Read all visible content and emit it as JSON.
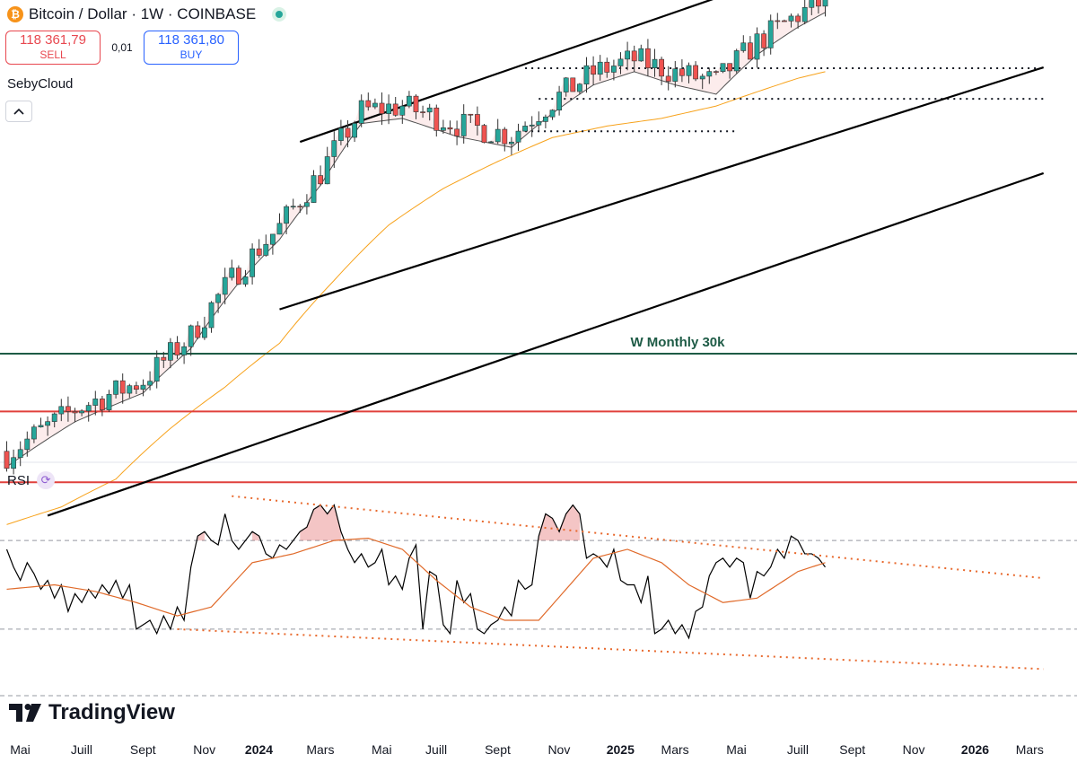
{
  "header": {
    "title": "Bitcoin / Dollar · 1W · COINBASE",
    "coin_icon": "bitcoin-icon",
    "live_icon": "market-open-dot"
  },
  "trade": {
    "sell_price": "118 361,79",
    "sell_label": "SELL",
    "spread": "0,01",
    "buy_price": "118 361,80",
    "buy_label": "BUY"
  },
  "author": "SebyCloud",
  "collapse_icon": "chevron-up-icon",
  "indicator": {
    "label": "RSI",
    "icon": "sync-icon"
  },
  "branding": "TradingView",
  "colors": {
    "up": "#26a69a",
    "down": "#ef5350",
    "ema_fast": "#505050",
    "ema_slow": "#f7a21b",
    "horizontal_green": "#1e5b46",
    "horizontal_red": "#e0403c",
    "rsi_line": "#000000",
    "rsi_ma": "#e06a2a",
    "rsi_trend": "#e8692d",
    "sell": "#e8474f",
    "buy": "#2962ff"
  },
  "chart_data": {
    "type": "candlestick",
    "title": "Bitcoin / Dollar · 1W · COINBASE",
    "x_axis": {
      "tick_labels": [
        {
          "label": "Mai",
          "t": 0,
          "bold": false
        },
        {
          "label": "Juill",
          "t": 9,
          "bold": false
        },
        {
          "label": "Sept",
          "t": 18,
          "bold": false
        },
        {
          "label": "Nov",
          "t": 27,
          "bold": false
        },
        {
          "label": "2024",
          "t": 35,
          "bold": true
        },
        {
          "label": "Mars",
          "t": 44,
          "bold": false
        },
        {
          "label": "Mai",
          "t": 53,
          "bold": false
        },
        {
          "label": "Juill",
          "t": 61,
          "bold": false
        },
        {
          "label": "Sept",
          "t": 70,
          "bold": false
        },
        {
          "label": "Nov",
          "t": 79,
          "bold": false
        },
        {
          "label": "2025",
          "t": 88,
          "bold": true
        },
        {
          "label": "Mars",
          "t": 96,
          "bold": false
        },
        {
          "label": "Mai",
          "t": 105,
          "bold": false
        },
        {
          "label": "Juill",
          "t": 114,
          "bold": false
        },
        {
          "label": "Sept",
          "t": 122,
          "bold": false
        },
        {
          "label": "Nov",
          "t": 131,
          "bold": false
        },
        {
          "label": "2026",
          "t": 140,
          "bold": true
        },
        {
          "label": "Mars",
          "t": 148,
          "bold": false
        }
      ]
    },
    "annotations": [
      {
        "text": "W Monthly 30k",
        "type": "horizontal",
        "price": 30000
      }
    ],
    "price_levels": [
      30000,
      25000,
      20000,
      58000,
      61500,
      71500,
      74000
    ],
    "horizontal_lines": [
      {
        "price": 30000,
        "color": "horizontal_green",
        "label": "W Monthly 30k"
      },
      {
        "price": 25000,
        "color": "horizontal_red"
      },
      {
        "price": 20000,
        "color": "horizontal_red"
      }
    ],
    "dotted_levels": [
      {
        "price": 73800,
        "t_from": 76,
        "t_to": 152
      },
      {
        "price": 67000,
        "t_from": 78,
        "t_to": 152
      },
      {
        "price": 60500,
        "t_from": 76,
        "t_to": 107
      }
    ],
    "trend_lines": [
      {
        "t1": 43,
        "p1": 58500,
        "t2": 121,
        "p2": 104500
      },
      {
        "t1": 40,
        "p1": 34500,
        "t2": 152,
        "p2": 74000
      },
      {
        "t1": 6,
        "p1": 18000,
        "t2": 152,
        "p2": 53000
      }
    ],
    "ema_fast_anchors": [
      [
        0,
        21000
      ],
      [
        10,
        24200
      ],
      [
        20,
        26500
      ],
      [
        27,
        30500
      ],
      [
        34,
        37500
      ],
      [
        40,
        43000
      ],
      [
        46,
        51000
      ],
      [
        52,
        62000
      ],
      [
        58,
        63000
      ],
      [
        66,
        59500
      ],
      [
        74,
        57500
      ],
      [
        80,
        64000
      ],
      [
        86,
        70000
      ],
      [
        92,
        73000
      ],
      [
        98,
        70000
      ],
      [
        104,
        68000
      ],
      [
        110,
        77000
      ],
      [
        116,
        84000
      ],
      [
        120,
        88000
      ]
    ],
    "ema_slow_anchors": [
      [
        0,
        17500
      ],
      [
        8,
        18500
      ],
      [
        16,
        20200
      ],
      [
        24,
        23700
      ],
      [
        32,
        27000
      ],
      [
        40,
        31000
      ],
      [
        48,
        37800
      ],
      [
        56,
        45000
      ],
      [
        64,
        50500
      ],
      [
        72,
        55000
      ],
      [
        80,
        59300
      ],
      [
        88,
        61500
      ],
      [
        96,
        63000
      ],
      [
        104,
        65500
      ],
      [
        110,
        68500
      ],
      [
        116,
        71500
      ],
      [
        120,
        73000
      ]
    ],
    "rsi": {
      "range": [
        0,
        100
      ],
      "levels": [
        70,
        30
      ],
      "values": [
        66,
        58,
        52,
        60,
        55,
        48,
        52,
        44,
        50,
        38,
        46,
        42,
        48,
        44,
        50,
        46,
        52,
        44,
        50,
        30,
        32,
        34,
        28,
        36,
        30,
        40,
        34,
        58,
        72,
        74,
        70,
        68,
        82,
        70,
        66,
        70,
        74,
        72,
        64,
        62,
        68,
        66,
        70,
        74,
        76,
        84,
        86,
        82,
        86,
        74,
        66,
        60,
        64,
        58,
        60,
        66,
        50,
        54,
        48,
        62,
        68,
        30,
        56,
        54,
        32,
        28,
        52,
        42,
        46,
        30,
        28,
        32,
        34,
        40,
        36,
        52,
        48,
        50,
        72,
        82,
        80,
        74,
        82,
        86,
        82,
        62,
        64,
        62,
        58,
        66,
        52,
        50,
        50,
        42,
        54,
        28,
        30,
        34,
        28,
        32,
        26,
        38,
        40,
        54,
        60,
        62,
        58,
        62,
        60,
        44,
        56,
        54,
        58,
        66,
        62,
        72,
        70,
        64,
        64,
        62,
        58
      ],
      "ma_anchors": [
        [
          0,
          48
        ],
        [
          7,
          50
        ],
        [
          13,
          47
        ],
        [
          19,
          42
        ],
        [
          25,
          36
        ],
        [
          30,
          40
        ],
        [
          36,
          60
        ],
        [
          42,
          64
        ],
        [
          48,
          70
        ],
        [
          53,
          71
        ],
        [
          58,
          66
        ],
        [
          63,
          52
        ],
        [
          68,
          40
        ],
        [
          73,
          34
        ],
        [
          78,
          34
        ],
        [
          82,
          48
        ],
        [
          86,
          62
        ],
        [
          91,
          66
        ],
        [
          96,
          60
        ],
        [
          100,
          50
        ],
        [
          105,
          42
        ],
        [
          110,
          44
        ],
        [
          116,
          56
        ],
        [
          120,
          60
        ]
      ],
      "upper_trend": {
        "t1": 33,
        "v1": 90,
        "t2": 152,
        "v2": 53
      },
      "lower_trend": {
        "t1": 25,
        "v1": 30,
        "t2": 152,
        "v2": 12
      }
    }
  }
}
